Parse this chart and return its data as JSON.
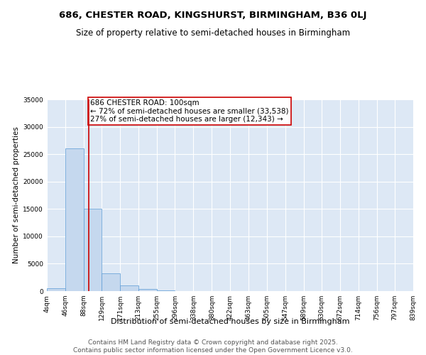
{
  "title": "686, CHESTER ROAD, KINGSHURST, BIRMINGHAM, B36 0LJ",
  "subtitle": "Size of property relative to semi-detached houses in Birmingham",
  "xlabel": "Distribution of semi-detached houses by size in Birmingham",
  "ylabel": "Number of semi-detached properties",
  "bin_edges": [
    4,
    46,
    88,
    129,
    171,
    213,
    255,
    296,
    338,
    380,
    422,
    463,
    505,
    547,
    589,
    630,
    672,
    714,
    756,
    797,
    839
  ],
  "bar_heights": [
    500,
    26000,
    15000,
    3200,
    1100,
    450,
    150,
    60,
    20,
    10,
    5,
    3,
    2,
    1,
    1,
    0,
    0,
    0,
    0,
    0
  ],
  "bar_color": "#c5d8ee",
  "bar_edge_color": "#5b9bd5",
  "property_size": 100,
  "red_line_color": "#cc0000",
  "annotation_text": "686 CHESTER ROAD: 100sqm\n← 72% of semi-detached houses are smaller (33,538)\n27% of semi-detached houses are larger (12,343) →",
  "annotation_box_color": "#ffffff",
  "annotation_box_edge_color": "#cc0000",
  "ylim": [
    0,
    35000
  ],
  "yticks": [
    0,
    5000,
    10000,
    15000,
    20000,
    25000,
    30000,
    35000
  ],
  "background_color": "#dde8f5",
  "footer_text": "Contains HM Land Registry data © Crown copyright and database right 2025.\nContains public sector information licensed under the Open Government Licence v3.0.",
  "title_fontsize": 9.5,
  "subtitle_fontsize": 8.5,
  "annotation_fontsize": 7.5,
  "tick_fontsize": 6.5,
  "ylabel_fontsize": 7.5,
  "xlabel_fontsize": 8,
  "footer_fontsize": 6.5
}
